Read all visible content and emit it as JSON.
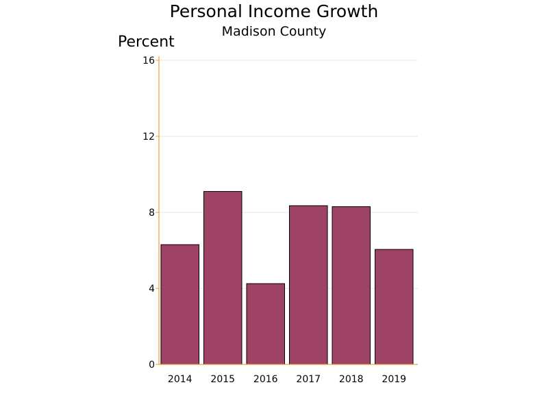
{
  "chart_data": {
    "type": "bar",
    "title": "Personal Income Growth",
    "subtitle": "Madison County",
    "ylabel": "Percent",
    "xlabel": "",
    "categories": [
      "2014",
      "2015",
      "2016",
      "2017",
      "2018",
      "2019"
    ],
    "values": [
      6.3,
      9.1,
      4.25,
      8.35,
      8.3,
      6.05
    ],
    "ylim": [
      0,
      16
    ],
    "yticks": [
      "0",
      "4",
      "8",
      "12",
      "16"
    ],
    "grid": true,
    "legend": "none",
    "colors": {
      "bar": "#9e4266",
      "bar_outline": "#000000",
      "axis": "#f0a030",
      "grid": "#e4e4e4"
    }
  }
}
